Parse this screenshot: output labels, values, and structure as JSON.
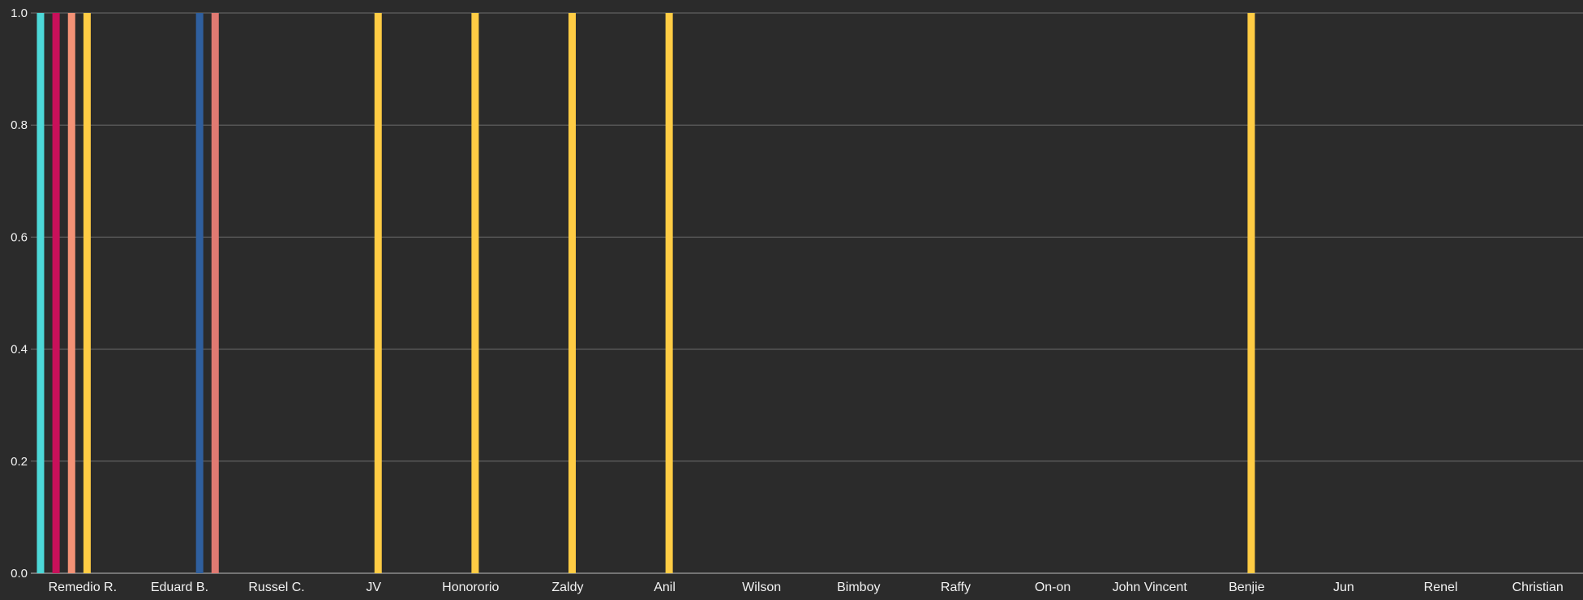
{
  "chart_data": {
    "type": "bar",
    "title": "",
    "xlabel": "",
    "ylabel": "",
    "ylim": [
      0,
      1
    ],
    "yticks": [
      "0.0",
      "0.2",
      "0.4",
      "0.6",
      "0.8",
      "1.0"
    ],
    "grid": true,
    "legend": "none",
    "colors": {
      "background": "#2b2b2b",
      "grid": "#6e6e6e",
      "text": "#f2f2f2",
      "cyan": "#4dd8d8",
      "crimson": "#c8105a",
      "salmon": "#f49276",
      "yellow": "#ffcc44",
      "blue": "#2f5f9e",
      "rose": "#e07a72"
    },
    "categories": [
      "Remedio R.",
      "Eduard B.",
      "Russel C.",
      "JV",
      "Honororio",
      "Zaldy",
      "Anil",
      "Wilson",
      "Bimboy",
      "Raffy",
      "On-on",
      "John Vincent",
      "Benjie",
      "Jun",
      "Renel",
      "Christian"
    ],
    "series": [
      {
        "color_key": "cyan",
        "values": [
          1,
          0,
          0,
          0,
          0,
          0,
          0,
          0,
          0,
          0,
          0,
          0,
          0,
          0,
          0,
          0
        ]
      },
      {
        "color_key": "crimson",
        "values": [
          1,
          0,
          0,
          0,
          0,
          0,
          0,
          0,
          0,
          0,
          0,
          0,
          0,
          0,
          0,
          0
        ]
      },
      {
        "color_key": "salmon",
        "values": [
          1,
          0,
          0,
          0,
          0,
          0,
          0,
          0,
          0,
          0,
          0,
          0,
          0,
          0,
          0,
          0
        ]
      },
      {
        "color_key": "yellow",
        "values": [
          1,
          0,
          0,
          1,
          1,
          1,
          1,
          0,
          0,
          0,
          0,
          0,
          1,
          0,
          0,
          0
        ]
      },
      {
        "color_key": "blue",
        "values": [
          0,
          1,
          0,
          0,
          0,
          0,
          0,
          0,
          0,
          0,
          0,
          0,
          0,
          0,
          0,
          0
        ]
      },
      {
        "color_key": "rose",
        "values": [
          0,
          1,
          0,
          0,
          0,
          0,
          0,
          0,
          0,
          0,
          0,
          0,
          0,
          0,
          0,
          0
        ]
      }
    ]
  }
}
